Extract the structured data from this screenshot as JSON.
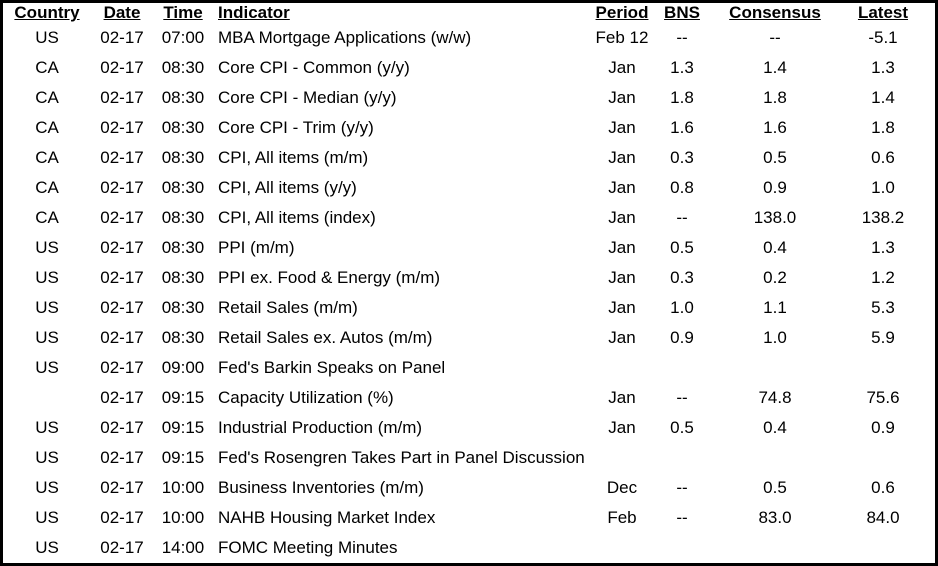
{
  "colors": {
    "background": "#ffffff",
    "border": "#000000",
    "text": "#000000"
  },
  "table": {
    "columns": [
      {
        "key": "country",
        "label": "Country"
      },
      {
        "key": "date",
        "label": "Date"
      },
      {
        "key": "time",
        "label": "Time"
      },
      {
        "key": "indicator",
        "label": "Indicator"
      },
      {
        "key": "period",
        "label": "Period"
      },
      {
        "key": "bns",
        "label": "BNS"
      },
      {
        "key": "consensus",
        "label": "Consensus"
      },
      {
        "key": "latest",
        "label": "Latest"
      }
    ],
    "rows": [
      {
        "country": "US",
        "date": "02-17",
        "time": "07:00",
        "indicator": "MBA Mortgage Applications (w/w)",
        "period": "Feb 12",
        "bns": "--",
        "consensus": "--",
        "latest": "-5.1"
      },
      {
        "country": "CA",
        "date": "02-17",
        "time": "08:30",
        "indicator": "Core CPI - Common (y/y)",
        "period": "Jan",
        "bns": "1.3",
        "consensus": "1.4",
        "latest": "1.3"
      },
      {
        "country": "CA",
        "date": "02-17",
        "time": "08:30",
        "indicator": "Core CPI - Median (y/y)",
        "period": "Jan",
        "bns": "1.8",
        "consensus": "1.8",
        "latest": "1.4"
      },
      {
        "country": "CA",
        "date": "02-17",
        "time": "08:30",
        "indicator": "Core CPI - Trim (y/y)",
        "period": "Jan",
        "bns": "1.6",
        "consensus": "1.6",
        "latest": "1.8"
      },
      {
        "country": "CA",
        "date": "02-17",
        "time": "08:30",
        "indicator": "CPI, All items (m/m)",
        "period": "Jan",
        "bns": "0.3",
        "consensus": "0.5",
        "latest": "0.6"
      },
      {
        "country": "CA",
        "date": "02-17",
        "time": "08:30",
        "indicator": "CPI, All items (y/y)",
        "period": "Jan",
        "bns": "0.8",
        "consensus": "0.9",
        "latest": "1.0"
      },
      {
        "country": "CA",
        "date": "02-17",
        "time": "08:30",
        "indicator": "CPI, All items (index)",
        "period": "Jan",
        "bns": "--",
        "consensus": "138.0",
        "latest": "138.2"
      },
      {
        "country": "US",
        "date": "02-17",
        "time": "08:30",
        "indicator": "PPI (m/m)",
        "period": "Jan",
        "bns": "0.5",
        "consensus": "0.4",
        "latest": "1.3"
      },
      {
        "country": "US",
        "date": "02-17",
        "time": "08:30",
        "indicator": "PPI ex. Food & Energy (m/m)",
        "period": "Jan",
        "bns": "0.3",
        "consensus": "0.2",
        "latest": "1.2"
      },
      {
        "country": "US",
        "date": "02-17",
        "time": "08:30",
        "indicator": "Retail Sales (m/m)",
        "period": "Jan",
        "bns": "1.0",
        "consensus": "1.1",
        "latest": "5.3"
      },
      {
        "country": "US",
        "date": "02-17",
        "time": "08:30",
        "indicator": "Retail Sales ex. Autos (m/m)",
        "period": "Jan",
        "bns": "0.9",
        "consensus": "1.0",
        "latest": "5.9"
      },
      {
        "country": "US",
        "date": "02-17",
        "time": "09:00",
        "indicator": "Fed's Barkin Speaks on Panel",
        "period": "",
        "bns": "",
        "consensus": "",
        "latest": ""
      },
      {
        "country": "",
        "date": "02-17",
        "time": "09:15",
        "indicator": "Capacity Utilization (%)",
        "period": "Jan",
        "bns": "--",
        "consensus": "74.8",
        "latest": "75.6"
      },
      {
        "country": "US",
        "date": "02-17",
        "time": "09:15",
        "indicator": "Industrial Production (m/m)",
        "period": "Jan",
        "bns": "0.5",
        "consensus": "0.4",
        "latest": "0.9"
      },
      {
        "country": "US",
        "date": "02-17",
        "time": "09:15",
        "indicator": "Fed's Rosengren Takes Part in Panel Discussion",
        "period": "",
        "bns": "",
        "consensus": "",
        "latest": ""
      },
      {
        "country": "US",
        "date": "02-17",
        "time": "10:00",
        "indicator": "Business Inventories (m/m)",
        "period": "Dec",
        "bns": "--",
        "consensus": "0.5",
        "latest": "0.6"
      },
      {
        "country": "US",
        "date": "02-17",
        "time": "10:00",
        "indicator": "NAHB Housing Market Index",
        "period": "Feb",
        "bns": "--",
        "consensus": "83.0",
        "latest": "84.0"
      },
      {
        "country": "US",
        "date": "02-17",
        "time": "14:00",
        "indicator": "FOMC Meeting Minutes",
        "period": "",
        "bns": "",
        "consensus": "",
        "latest": ""
      }
    ]
  }
}
